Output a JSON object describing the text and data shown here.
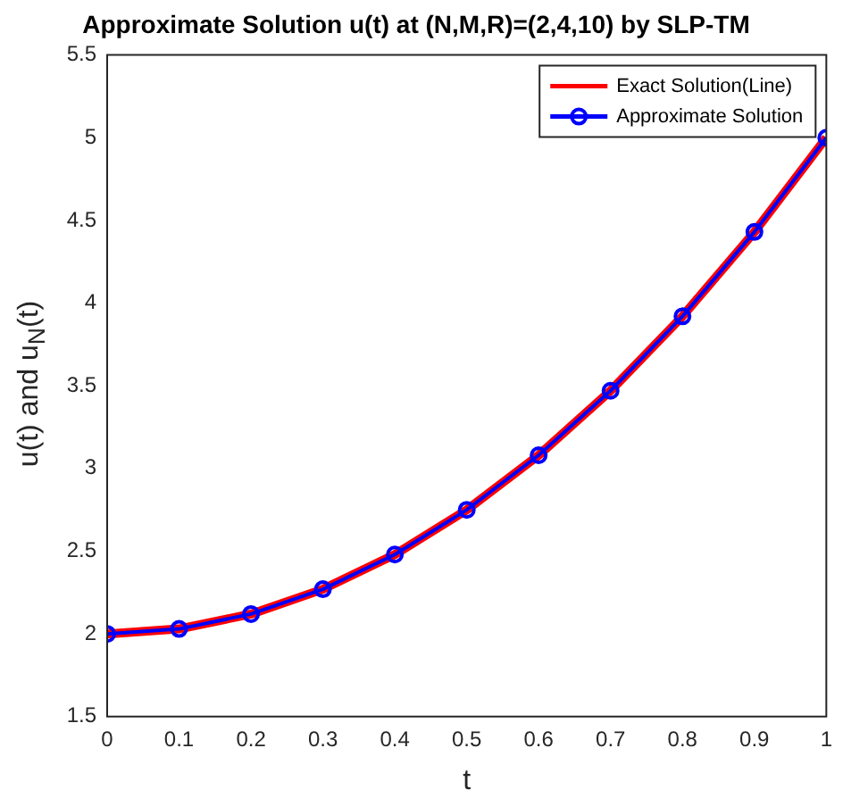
{
  "chart_data": {
    "type": "line",
    "title": "Approximate Solution u(t) at (N,M,R)=(2,4,10) by SLP-TM",
    "xlabel": "t",
    "ylabel": "u(t) and u$_{N}$(t)",
    "x": [
      0,
      0.1,
      0.2,
      0.3,
      0.4,
      0.5,
      0.6,
      0.7,
      0.8,
      0.9,
      1
    ],
    "series": [
      {
        "name": "Exact Solution(Line)",
        "color": "#ff0000",
        "marker": "none",
        "values": [
          2,
          2.03,
          2.12,
          2.27,
          2.48,
          2.75,
          3.08,
          3.47,
          3.92,
          4.43,
          5
        ]
      },
      {
        "name": "Approximate Solution",
        "color": "#0000ff",
        "marker": "circle",
        "values": [
          2,
          2.03,
          2.12,
          2.27,
          2.48,
          2.75,
          3.08,
          3.47,
          3.92,
          4.43,
          5
        ]
      }
    ],
    "xlim": [
      0,
      1
    ],
    "xticks": [
      0,
      0.1,
      0.2,
      0.3,
      0.4,
      0.5,
      0.6,
      0.7,
      0.8,
      0.9,
      1
    ],
    "ylim": [
      1.5,
      5.5
    ],
    "yticks": [
      1.5,
      2,
      2.5,
      3,
      3.5,
      4,
      4.5,
      5,
      5.5
    ],
    "grid": false,
    "legend": "top right",
    "line_style": "solid"
  }
}
